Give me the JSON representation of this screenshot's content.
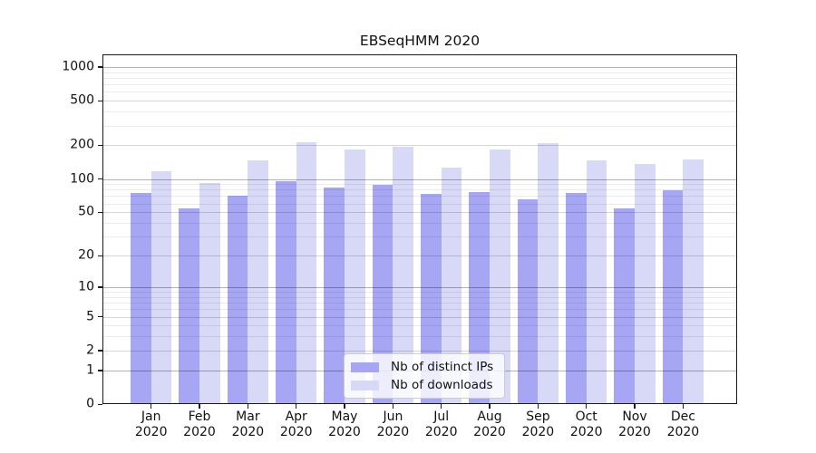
{
  "chart_data": {
    "type": "bar",
    "title": "EBSeqHMM 2020",
    "categories": [
      "Jan 2020",
      "Feb 2020",
      "Mar 2020",
      "Apr 2020",
      "May 2020",
      "Jun 2020",
      "Jul 2020",
      "Aug 2020",
      "Sep 2020",
      "Oct 2020",
      "Nov 2020",
      "Dec 2020"
    ],
    "series": [
      {
        "name": "Nb of distinct IPs",
        "color": "#a6a6f4",
        "values": [
          75,
          54,
          70,
          96,
          83,
          88,
          74,
          76,
          66,
          75,
          54,
          79
        ]
      },
      {
        "name": "Nb of downloads",
        "color": "#d8d8f7",
        "values": [
          117,
          92,
          148,
          212,
          183,
          193,
          127,
          185,
          210,
          147,
          136,
          149
        ]
      }
    ],
    "xlabel": "",
    "ylabel": "",
    "yscale": "log1p",
    "ylim": [
      0,
      1270
    ],
    "yticks": {
      "values": [
        0,
        1,
        2,
        5,
        10,
        20,
        50,
        100,
        200,
        500,
        1000
      ],
      "labels": [
        "0",
        "1",
        "2",
        "5",
        "10",
        "20",
        "50",
        "100",
        "200",
        "500",
        "1000"
      ]
    },
    "grid": true,
    "grid_colors": {
      "major": "#b2b2b2",
      "medium": "#d9d9d9",
      "minor": "#ececec"
    },
    "legend_position": "lower-center",
    "legend_items": [
      "Nb of distinct IPs",
      "Nb of downloads"
    ]
  }
}
